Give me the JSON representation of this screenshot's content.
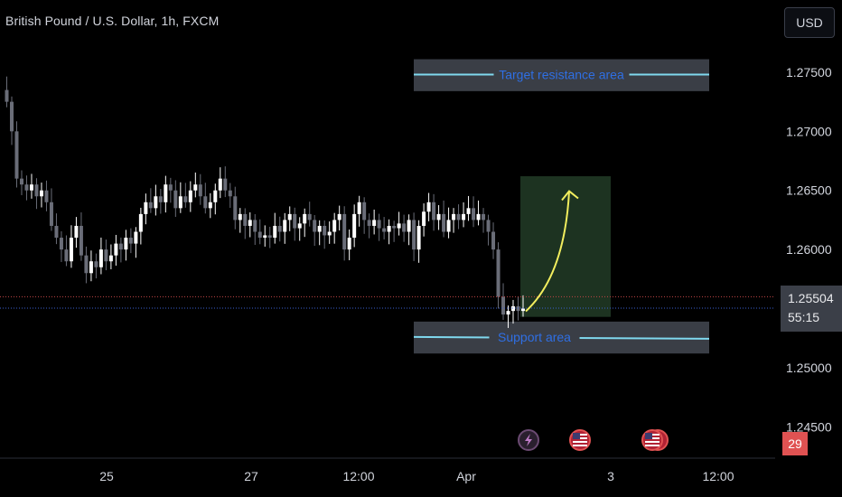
{
  "header": {
    "title": "British Pound / U.S. Dollar, 1h, FXCM",
    "currency": "USD"
  },
  "price_label": {
    "price": "1.25504",
    "countdown": "55:15"
  },
  "badge": {
    "count": "29"
  },
  "zones": {
    "resistance": {
      "label": "Target resistance area",
      "low": 1.2734,
      "high": 1.2761,
      "line": 1.2748
    },
    "support": {
      "label": "Support area",
      "low": 1.2512,
      "high": 1.2539,
      "line": 1.2526
    }
  },
  "colors": {
    "up_candle": "#ffffff",
    "down_candle": "#6a6d78",
    "zone_fill": "#3a3e46",
    "zone_line": "#7fd8ee",
    "arrow": "#f2ee5e",
    "projection_box": "#1d3321",
    "current_price_line": "#3a5fcf",
    "last_close_line": "#c44646"
  },
  "event_icons": [
    "lightning-icon",
    "us-flag-icon",
    "us-flag-icon"
  ],
  "chart_data": {
    "type": "candlestick",
    "title": "British Pound / U.S. Dollar, 1h, FXCM",
    "ylim": [
      1.2425,
      1.2805
    ],
    "yticks": [
      "1.27500",
      "1.27000",
      "1.26500",
      "1.26000",
      "1.25500",
      "1.25000",
      "1.24500"
    ],
    "xticks": [
      "25",
      "27",
      "12:00",
      "Apr",
      "3",
      "12:00"
    ],
    "grid": false,
    "last_price": 1.25504,
    "projection": {
      "from_price": 1.255,
      "to_price": 1.2654,
      "box_high": 1.2662,
      "box_low": 1.2543
    },
    "price_path": [
      1.2735,
      1.2725,
      1.27,
      1.266,
      1.2655,
      1.265,
      1.2655,
      1.2645,
      1.265,
      1.264,
      1.262,
      1.261,
      1.26,
      1.259,
      1.261,
      1.262,
      1.2595,
      1.258,
      1.259,
      1.2585,
      1.26,
      1.259,
      1.2595,
      1.2605,
      1.26,
      1.261,
      1.2605,
      1.2615,
      1.263,
      1.264,
      1.2635,
      1.2645,
      1.264,
      1.2655,
      1.265,
      1.2635,
      1.2645,
      1.264,
      1.265,
      1.2655,
      1.2645,
      1.2635,
      1.264,
      1.265,
      1.266,
      1.265,
      1.2645,
      1.2625,
      1.263,
      1.262,
      1.2625,
      1.2615,
      1.261,
      1.2612,
      1.261,
      1.262,
      1.2615,
      1.2625,
      1.263,
      1.2618,
      1.2622,
      1.263,
      1.2625,
      1.2615,
      1.262,
      1.2612,
      1.2615,
      1.2625,
      1.263,
      1.26,
      1.261,
      1.263,
      1.264,
      1.2625,
      1.262,
      1.2625,
      1.2618,
      1.2615,
      1.262,
      1.2618,
      1.2622,
      1.2615,
      1.2625,
      1.26,
      1.262,
      1.2632,
      1.264,
      1.2625,
      1.263,
      1.2615,
      1.2625,
      1.263,
      1.2625,
      1.263,
      1.2635,
      1.2625,
      1.263,
      1.2625,
      1.2615,
      1.26,
      1.256,
      1.2545,
      1.2548,
      1.2552,
      1.2548,
      1.255
    ]
  }
}
